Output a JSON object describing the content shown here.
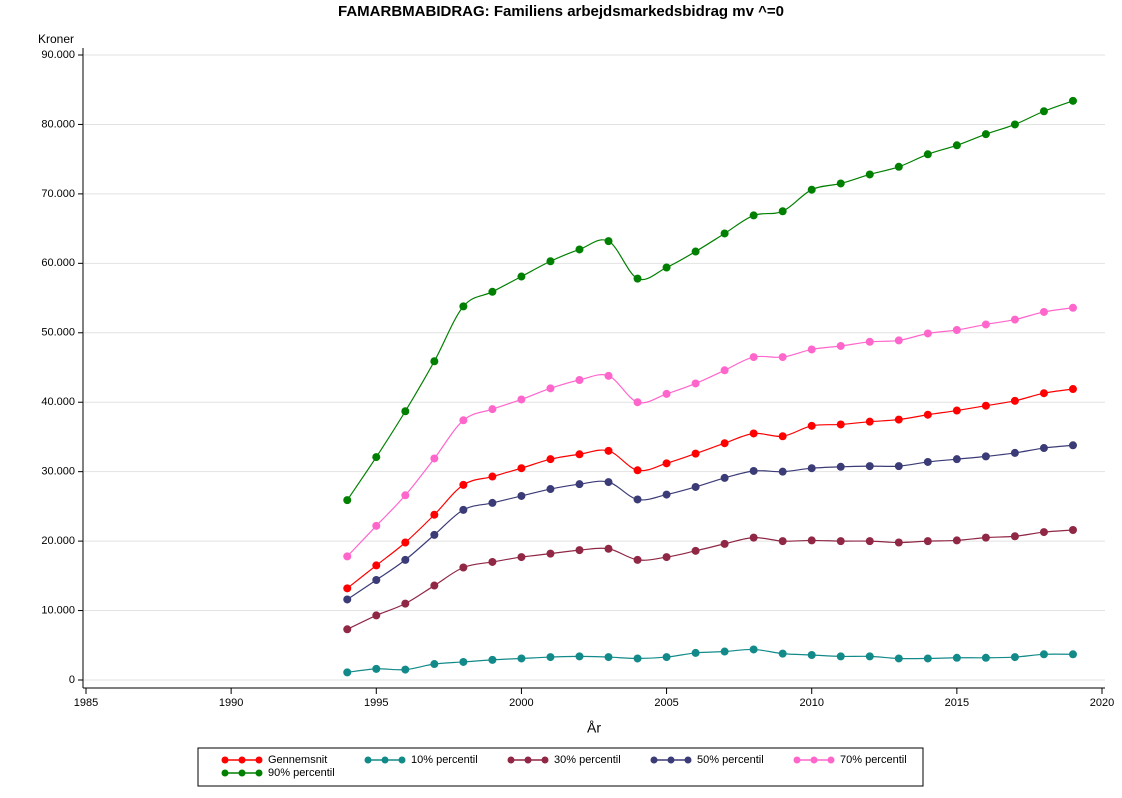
{
  "chart_data": {
    "type": "line",
    "title": "FAMARBMABIDRAG: Familiens arbejdsmarkedsbidrag mv ^=0",
    "y_label": "Kroner",
    "x_label": "År",
    "x": [
      1994,
      1995,
      1996,
      1997,
      1998,
      1999,
      2000,
      2001,
      2002,
      2003,
      2004,
      2005,
      2006,
      2007,
      2008,
      2009,
      2010,
      2011,
      2012,
      2013,
      2014,
      2015,
      2016,
      2017,
      2018,
      2019
    ],
    "xlim": [
      1985,
      2020
    ],
    "xticks": [
      1985,
      1990,
      1995,
      2000,
      2005,
      2010,
      2015,
      2020
    ],
    "ylim": [
      0,
      90000
    ],
    "yticks": [
      0,
      {
        "value": 10000,
        "label": "10.000"
      },
      {
        "value": 20000,
        "label": "20.000"
      },
      {
        "value": 30000,
        "label": "30.000"
      },
      {
        "value": 40000,
        "label": "40.000"
      },
      {
        "value": 50000,
        "label": "50.000"
      },
      {
        "value": 60000,
        "label": "60.000"
      },
      {
        "value": 70000,
        "label": "70.000"
      },
      {
        "value": 80000,
        "label": "80.000"
      },
      {
        "value": 90000,
        "label": "90.000"
      }
    ],
    "grid": true,
    "series": [
      {
        "name": "Gennemsnit",
        "color": "#ff0000",
        "values": [
          13200,
          16500,
          19800,
          23800,
          28100,
          29300,
          30500,
          31800,
          32500,
          33000,
          30200,
          31200,
          32600,
          34100,
          35500,
          35100,
          36600,
          36800,
          37200,
          37500,
          38200,
          38800,
          39500,
          40200,
          41300,
          41900
        ]
      },
      {
        "name": "10% percentil",
        "color": "#138a8a",
        "values": [
          1100,
          1600,
          1500,
          2300,
          2600,
          2900,
          3100,
          3300,
          3400,
          3300,
          3100,
          3300,
          3900,
          4100,
          4400,
          3800,
          3600,
          3400,
          3400,
          3100,
          3100,
          3200,
          3200,
          3300,
          3700,
          3700
        ]
      },
      {
        "name": "30% percentil",
        "color": "#8f2745",
        "values": [
          7300,
          9300,
          11000,
          13600,
          16200,
          17000,
          17700,
          18200,
          18700,
          18900,
          17300,
          17700,
          18600,
          19600,
          20500,
          20000,
          20100,
          20000,
          20000,
          19800,
          20000,
          20100,
          20500,
          20700,
          21300,
          21600
        ]
      },
      {
        "name": "50% percentil",
        "color": "#3b3b77",
        "values": [
          11600,
          14400,
          17300,
          20900,
          24500,
          25500,
          26500,
          27500,
          28200,
          28500,
          26000,
          26700,
          27800,
          29100,
          30100,
          30000,
          30500,
          30700,
          30800,
          30800,
          31400,
          31800,
          32200,
          32700,
          33400,
          33800
        ]
      },
      {
        "name": "70% percentil",
        "color": "#ff66cc",
        "values": [
          17800,
          22200,
          26600,
          31900,
          37400,
          39000,
          40400,
          42000,
          43200,
          43800,
          40000,
          41200,
          42700,
          44600,
          46500,
          46500,
          47600,
          48100,
          48700,
          48900,
          49900,
          50400,
          51200,
          51900,
          53000,
          53600
        ]
      },
      {
        "name": "90% percentil",
        "color": "#008000",
        "values": [
          25900,
          32100,
          38700,
          45900,
          53800,
          55900,
          58100,
          60300,
          62000,
          63200,
          57800,
          59400,
          61700,
          64300,
          66900,
          67500,
          70600,
          71500,
          72800,
          73900,
          75700,
          77000,
          78600,
          80000,
          81900,
          83400
        ]
      }
    ]
  }
}
